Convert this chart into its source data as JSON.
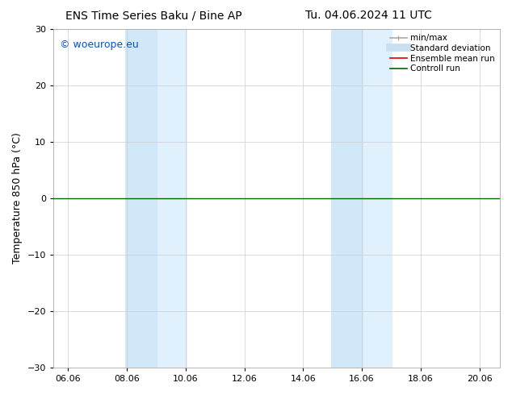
{
  "title_left": "ENS Time Series Baku / Bine AP",
  "title_right": "Tu. 04.06.2024 11 UTC",
  "ylabel": "Temperature 850 hPa (°C)",
  "ylim": [
    -30,
    30
  ],
  "yticks": [
    -30,
    -20,
    -10,
    0,
    10,
    20,
    30
  ],
  "xlim_start": 5.5,
  "xlim_end": 20.7,
  "xtick_labels": [
    "06.06",
    "08.06",
    "10.06",
    "12.06",
    "14.06",
    "16.06",
    "18.06",
    "20.06"
  ],
  "xtick_positions": [
    6.0,
    8.0,
    10.0,
    12.0,
    14.0,
    16.0,
    18.0,
    20.0
  ],
  "shaded_bands": [
    {
      "x_start": 7.95,
      "x_end": 9.05,
      "color": "#d0e8f8"
    },
    {
      "x_start": 9.05,
      "x_end": 10.05,
      "color": "#e0f0fc"
    },
    {
      "x_start": 14.95,
      "x_end": 16.05,
      "color": "#d0e8f8"
    },
    {
      "x_start": 16.05,
      "x_end": 17.05,
      "color": "#e0f0fc"
    }
  ],
  "zero_line_color": "#006600",
  "zero_line_y": 0,
  "watermark_text": "© woeurope.eu",
  "watermark_color": "#0055cc",
  "watermark_fontsize": 9,
  "legend_items": [
    {
      "label": "min/max",
      "color": "#aaaaaa",
      "lw": 1.2,
      "style": "line_with_caps"
    },
    {
      "label": "Standard deviation",
      "color": "#c8dff0",
      "lw": 7,
      "style": "line"
    },
    {
      "label": "Ensemble mean run",
      "color": "#dd0000",
      "lw": 1.2,
      "style": "line"
    },
    {
      "label": "Controll run",
      "color": "#006600",
      "lw": 1.2,
      "style": "line"
    }
  ],
  "bg_color": "#ffffff",
  "plot_bg_color": "#ffffff",
  "grid_color": "#cccccc",
  "title_fontsize": 10,
  "tick_fontsize": 8,
  "ylabel_fontsize": 9,
  "legend_fontsize": 7.5
}
